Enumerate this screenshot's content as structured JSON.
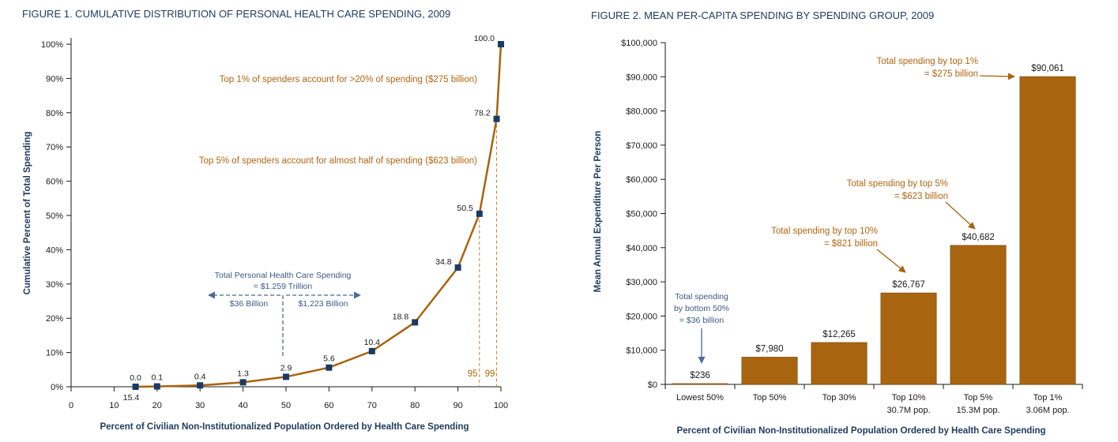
{
  "colors": {
    "navy": "#1f3a5c",
    "orange": "#a8640f",
    "orange_text": "#b3650f",
    "bar_fill": "#a8640f",
    "marker": "#1a3a66",
    "blue_text": "#3b5a85"
  },
  "figure1": {
    "title": "FIGURE 1. CUMULATIVE DISTRIBUTION OF PERSONAL HEALTH CARE SPENDING, 2009",
    "ylabel": "Cumulative Percent of Total Spending",
    "xlabel": "Percent of Civilian Non-Institutionalized Population Ordered by Health Care Spending",
    "ann_top1": "Top 1% of spenders account for >20% of spending ($275 billion)",
    "ann_top5": "Top 5% of spenders account for almost half of spending ($623 billion)",
    "ann_total_1": "Total Personal Health Care Spending",
    "ann_total_2": "= $1.259 Trillion",
    "ann_left": "$36 Billion",
    "ann_right": "$1,223 Billion",
    "ref_95": "95",
    "ref_99": "99",
    "extra_label": "15.4"
  },
  "figure2": {
    "title": "FIGURE 2. MEAN PER-CAPITA SPENDING BY SPENDING GROUP, 2009",
    "ylabel": "Mean Annual Expenditure Per Person",
    "xlabel": "Percent of Civilian Non-Institutionalized Population Ordered by Health Care Spending",
    "ann_top1_1": "Total spending by top 1%",
    "ann_top1_2": "= $275 billion",
    "ann_top5_1": "Total spending by top 5%",
    "ann_top5_2": "= $623 billion",
    "ann_top10_1": "Total spending by top 10%",
    "ann_top10_2": "= $821 billion",
    "ann_bottom_1": "Total spending",
    "ann_bottom_2": "by bottom 50%",
    "ann_bottom_3": "= $36 billion"
  },
  "chart_data": [
    {
      "type": "line",
      "title": "FIGURE 1. CUMULATIVE DISTRIBUTION OF PERSONAL HEALTH CARE SPENDING, 2009",
      "xlabel": "Percent of Civilian Non-Institutionalized Population Ordered by Health Care Spending",
      "ylabel": "Cumulative Percent of Total Spending",
      "xlim": [
        0,
        100
      ],
      "ylim": [
        0,
        100
      ],
      "x_ticks": [
        "0",
        "10",
        "20",
        "30",
        "40",
        "50",
        "60",
        "70",
        "80",
        "90",
        "100"
      ],
      "y_ticks": [
        "0%",
        "10%",
        "20%",
        "30%",
        "40%",
        "50%",
        "60%",
        "70%",
        "80%",
        "90%",
        "100%"
      ],
      "grid": false,
      "x": [
        15,
        20,
        30,
        40,
        50,
        60,
        70,
        80,
        90,
        95,
        99,
        100
      ],
      "y": [
        0.0,
        0.1,
        0.4,
        1.3,
        2.9,
        5.6,
        10.4,
        18.8,
        34.8,
        50.5,
        78.2,
        100.0
      ],
      "labels": [
        "0.0",
        "0.1",
        "0.4",
        "1.3",
        "2.9",
        "5.6",
        "10.4",
        "18.8",
        "34.8",
        "50.5",
        "78.2",
        "100.0"
      ]
    },
    {
      "type": "bar",
      "title": "FIGURE 2. MEAN PER-CAPITA SPENDING BY SPENDING GROUP, 2009",
      "xlabel": "Percent of Civilian Non-Institutionalized Population Ordered by Health Care Spending",
      "ylabel": "Mean Annual Expenditure Per Person",
      "ylim": [
        0,
        100000
      ],
      "y_ticks": [
        "$0",
        "$10,000",
        "$20,000",
        "$30,000",
        "$40,000",
        "$50,000",
        "$60,000",
        "$70,000",
        "$80,000",
        "$90,000",
        "$100,000"
      ],
      "grid": false,
      "categories": [
        "Lowest 50%",
        "Top 50%",
        "Top 30%",
        "Top 10%",
        "Top 5%",
        "Top 1%"
      ],
      "category_sublabels": [
        "",
        "",
        "",
        "30.7M pop.",
        "15.3M pop.",
        "3.06M pop."
      ],
      "values": [
        236,
        7980,
        12265,
        26767,
        40682,
        90061
      ],
      "labels": [
        "$236",
        "$7,980",
        "$12,265",
        "$26,767",
        "$40,682",
        "$90,061"
      ]
    }
  ]
}
